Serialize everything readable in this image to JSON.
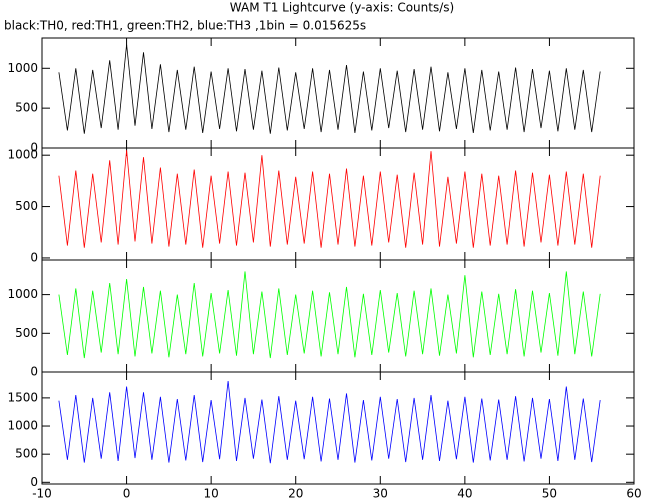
{
  "chart_data": [
    {
      "type": "line",
      "title": "WAM T1 Lightcurve (y-axis: Counts/s)",
      "subtitle": "black:TH0, red:TH1, green:TH2, blue:TH3 ,1bin = 0.015625s",
      "x": [
        -8,
        -7,
        -6,
        -5,
        -4,
        -3,
        -2,
        -1,
        0,
        1,
        2,
        3,
        4,
        5,
        6,
        7,
        8,
        9,
        10,
        11,
        12,
        13,
        14,
        15,
        16,
        17,
        18,
        19,
        20,
        21,
        22,
        23,
        24,
        25,
        26,
        27,
        28,
        29,
        30,
        31,
        32,
        33,
        34,
        35,
        36,
        37,
        38,
        39,
        40,
        41,
        42,
        43,
        44,
        45,
        46,
        47,
        48,
        49,
        50,
        51,
        52,
        53,
        54,
        55,
        56
      ],
      "series": [
        {
          "name": "TH0",
          "color": "#000000",
          "values": [
            950,
            220,
            1000,
            180,
            980,
            250,
            1100,
            230,
            1300,
            280,
            1200,
            240,
            1050,
            200,
            980,
            230,
            1020,
            190,
            960,
            240,
            1000,
            210,
            990,
            230,
            970,
            180,
            1010,
            220,
            950,
            240,
            1000,
            200,
            980,
            230,
            1040,
            190,
            960,
            220,
            1000,
            250,
            970,
            200,
            990,
            230,
            1020,
            210,
            950,
            240,
            1000,
            190,
            980,
            220,
            960,
            230,
            1010,
            200,
            990,
            250,
            970,
            210,
            1000,
            230,
            980,
            200,
            960
          ]
        }
      ],
      "xlim": [
        -10,
        60
      ],
      "ylim": [
        0,
        1380
      ],
      "yticks": [
        0,
        500,
        1000
      ]
    },
    {
      "type": "line",
      "x": [
        -8,
        -7,
        -6,
        -5,
        -4,
        -3,
        -2,
        -1,
        0,
        1,
        2,
        3,
        4,
        5,
        6,
        7,
        8,
        9,
        10,
        11,
        12,
        13,
        14,
        15,
        16,
        17,
        18,
        19,
        20,
        21,
        22,
        23,
        24,
        25,
        26,
        27,
        28,
        29,
        30,
        31,
        32,
        33,
        34,
        35,
        36,
        37,
        38,
        39,
        40,
        41,
        42,
        43,
        44,
        45,
        46,
        47,
        48,
        49,
        50,
        51,
        52,
        53,
        54,
        55,
        56
      ],
      "series": [
        {
          "name": "TH1",
          "color": "#ff0000",
          "values": [
            800,
            120,
            850,
            100,
            820,
            150,
            950,
            130,
            1050,
            160,
            980,
            140,
            880,
            110,
            820,
            130,
            860,
            100,
            800,
            140,
            840,
            120,
            830,
            150,
            1000,
            110,
            850,
            130,
            790,
            140,
            840,
            100,
            820,
            130,
            870,
            110,
            800,
            120,
            840,
            150,
            810,
            100,
            830,
            130,
            1040,
            110,
            790,
            140,
            840,
            100,
            820,
            120,
            800,
            130,
            850,
            110,
            830,
            150,
            810,
            120,
            840,
            130,
            820,
            100,
            800
          ]
        }
      ],
      "xlim": [
        -10,
        60
      ],
      "ylim": [
        -20,
        1070
      ],
      "yticks": [
        0,
        500,
        1000
      ]
    },
    {
      "type": "line",
      "x": [
        -8,
        -7,
        -6,
        -5,
        -4,
        -3,
        -2,
        -1,
        0,
        1,
        2,
        3,
        4,
        5,
        6,
        7,
        8,
        9,
        10,
        11,
        12,
        13,
        14,
        15,
        16,
        17,
        18,
        19,
        20,
        21,
        22,
        23,
        24,
        25,
        26,
        27,
        28,
        29,
        30,
        31,
        32,
        33,
        34,
        35,
        36,
        37,
        38,
        39,
        40,
        41,
        42,
        43,
        44,
        45,
        46,
        47,
        48,
        49,
        50,
        51,
        52,
        53,
        54,
        55,
        56
      ],
      "series": [
        {
          "name": "TH2",
          "color": "#00ff00",
          "values": [
            1000,
            220,
            1080,
            180,
            1050,
            250,
            1150,
            230,
            1200,
            200,
            1100,
            240,
            1050,
            190,
            1000,
            230,
            1150,
            200,
            1020,
            240,
            1060,
            210,
            1300,
            230,
            1040,
            180,
            1080,
            220,
            1000,
            240,
            1050,
            200,
            1030,
            230,
            1100,
            190,
            1010,
            220,
            1060,
            250,
            1020,
            200,
            1050,
            230,
            1080,
            210,
            1000,
            240,
            1250,
            190,
            1040,
            220,
            1010,
            230,
            1070,
            200,
            1050,
            250,
            1020,
            210,
            1300,
            230,
            1040,
            200,
            1010
          ]
        }
      ],
      "xlim": [
        -10,
        60
      ],
      "ylim": [
        0,
        1447
      ],
      "yticks": [
        0,
        500,
        1000
      ]
    },
    {
      "type": "line",
      "x": [
        -8,
        -7,
        -6,
        -5,
        -4,
        -3,
        -2,
        -1,
        0,
        1,
        2,
        3,
        4,
        5,
        6,
        7,
        8,
        9,
        10,
        11,
        12,
        13,
        14,
        15,
        16,
        17,
        18,
        19,
        20,
        21,
        22,
        23,
        24,
        25,
        26,
        27,
        28,
        29,
        30,
        31,
        32,
        33,
        34,
        35,
        36,
        37,
        38,
        39,
        40,
        41,
        42,
        43,
        44,
        45,
        46,
        47,
        48,
        49,
        50,
        51,
        52,
        53,
        54,
        55,
        56
      ],
      "series": [
        {
          "name": "TH3",
          "color": "#0000ff",
          "values": [
            1450,
            400,
            1550,
            350,
            1500,
            420,
            1600,
            380,
            1700,
            430,
            1600,
            400,
            1520,
            350,
            1480,
            390,
            1550,
            360,
            1460,
            410,
            1800,
            380,
            1500,
            420,
            1470,
            340,
            1530,
            400,
            1450,
            410,
            1520,
            370,
            1490,
            400,
            1580,
            350,
            1460,
            390,
            1520,
            420,
            1480,
            360,
            1500,
            400,
            1550,
            380,
            1450,
            410,
            1520,
            350,
            1490,
            390,
            1470,
            400,
            1530,
            370,
            1500,
            420,
            1480,
            380,
            1700,
            400,
            1490,
            360,
            1460
          ]
        }
      ],
      "xlim": [
        -10,
        60
      ],
      "ylim": [
        -30,
        1960
      ],
      "yticks": [
        0,
        500,
        1000,
        1500
      ],
      "xticks": [
        -10,
        0,
        10,
        20,
        30,
        40,
        50,
        60
      ]
    }
  ]
}
